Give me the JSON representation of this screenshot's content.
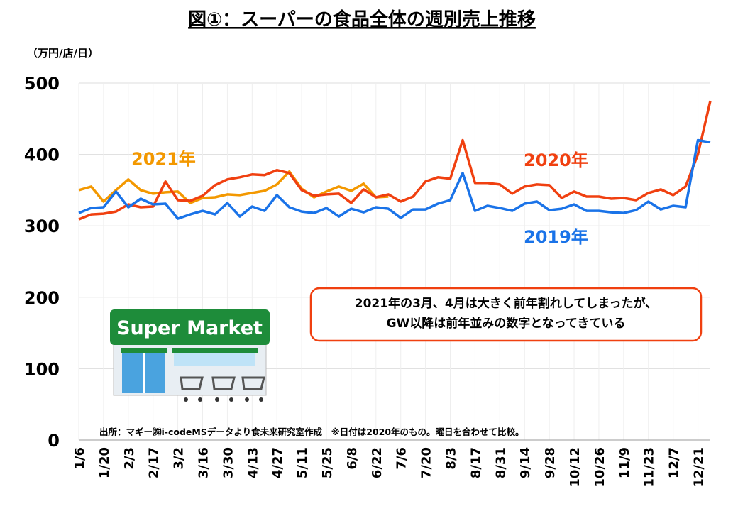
{
  "chart_data": {
    "type": "line",
    "title": "図①：スーパーの食品全体の週別売上推移",
    "y_label": "（万円/店/日）",
    "categories": [
      "1/6",
      null,
      "1/20",
      null,
      "2/3",
      null,
      "2/17",
      null,
      "3/2",
      null,
      "3/16",
      null,
      "3/30",
      null,
      "4/13",
      null,
      "4/27",
      null,
      "5/11",
      null,
      "5/25",
      null,
      "6/8",
      null,
      "6/22",
      null,
      "7/6",
      null,
      "7/20",
      null,
      "8/3",
      null,
      "8/17",
      null,
      "8/31",
      null,
      "9/14",
      null,
      "9/28",
      null,
      "10/12",
      null,
      "10/26",
      null,
      "11/9",
      null,
      "11/23",
      null,
      "12/7",
      null,
      "12/21",
      null
    ],
    "series": [
      {
        "name": "2019年",
        "color": "#1a73e8",
        "values": [
          318,
          325,
          326,
          348,
          326,
          338,
          330,
          331,
          310,
          316,
          321,
          316,
          332,
          313,
          327,
          321,
          343,
          326,
          320,
          318,
          325,
          313,
          324,
          319,
          326,
          324,
          311,
          323,
          323,
          331,
          336,
          374,
          321,
          328,
          325,
          321,
          331,
          334,
          322,
          324,
          330,
          321,
          321,
          319,
          318,
          322,
          334,
          323,
          328,
          326,
          420,
          417
        ]
      },
      {
        "name": "2020年",
        "color": "#f04010",
        "values": [
          309,
          316,
          317,
          320,
          330,
          326,
          327,
          362,
          336,
          335,
          342,
          357,
          365,
          368,
          372,
          371,
          378,
          374,
          350,
          342,
          344,
          345,
          332,
          351,
          340,
          344,
          334,
          341,
          362,
          368,
          366,
          420,
          360,
          360,
          358,
          345,
          355,
          358,
          357,
          339,
          348,
          341,
          341,
          338,
          339,
          336,
          346,
          351,
          343,
          355,
          400,
          475
        ]
      },
      {
        "name": "2021年",
        "color": "#f39800",
        "values": [
          350,
          355,
          334,
          350,
          365,
          350,
          345,
          347,
          348,
          332,
          339,
          340,
          344,
          343,
          346,
          349,
          358,
          376,
          352,
          340,
          348,
          355,
          349,
          359,
          340,
          341,
          null,
          null,
          null,
          null,
          null,
          null,
          null,
          null,
          null,
          null,
          null,
          null,
          null,
          null,
          null,
          null,
          null,
          null,
          null,
          null,
          null,
          null,
          null,
          null,
          null,
          null
        ]
      }
    ],
    "ylim": [
      0,
      500
    ],
    "yticks": [
      0,
      100,
      200,
      300,
      400,
      500
    ],
    "grid": true,
    "annotation": [
      "2021年の3月、4月は大きく前年割れしてしまったが、",
      "GW以降は前年並みの数字となってきている"
    ],
    "source": "出所：マギー㈱i-codeMSデータより食未来研究室作成　※日付は2020年のもの。曜日を合わせて比較。",
    "illustration_text": "Super Market"
  }
}
